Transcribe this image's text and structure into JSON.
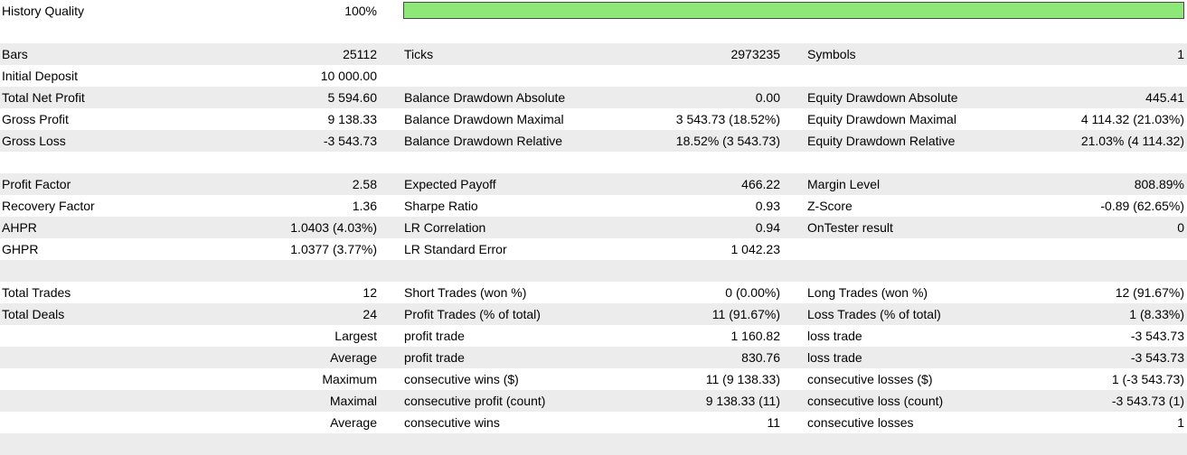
{
  "history_quality": {
    "label": "History Quality",
    "value_text": "100%",
    "fill_fraction": 1.0,
    "fill_color": "#8ee878"
  },
  "rows": [
    {
      "shade": false,
      "c1": "",
      "c2": "",
      "c3": "",
      "c4": "",
      "c5": "",
      "c6": ""
    },
    {
      "shade": true,
      "c1": "Bars",
      "c2": "25112",
      "c3": "Ticks",
      "c4": "2973235",
      "c5": "Symbols",
      "c6": "1"
    },
    {
      "shade": false,
      "c1": "Initial Deposit",
      "c2": "10 000.00",
      "c3": "",
      "c4": "",
      "c5": "",
      "c6": ""
    },
    {
      "shade": true,
      "c1": "Total Net Profit",
      "c2": "5 594.60",
      "c3": "Balance Drawdown Absolute",
      "c4": "0.00",
      "c5": "Equity Drawdown Absolute",
      "c6": "445.41"
    },
    {
      "shade": false,
      "c1": "Gross Profit",
      "c2": "9 138.33",
      "c3": "Balance Drawdown Maximal",
      "c4": "3 543.73 (18.52%)",
      "c5": "Equity Drawdown Maximal",
      "c6": "4 114.32 (21.03%)"
    },
    {
      "shade": true,
      "c1": "Gross Loss",
      "c2": "-3 543.73",
      "c3": "Balance Drawdown Relative",
      "c4": "18.52% (3 543.73)",
      "c5": "Equity Drawdown Relative",
      "c6": "21.03% (4 114.32)"
    },
    {
      "shade": false,
      "c1": "",
      "c2": "",
      "c3": "",
      "c4": "",
      "c5": "",
      "c6": ""
    },
    {
      "shade": true,
      "c1": "Profit Factor",
      "c2": "2.58",
      "c3": "Expected Payoff",
      "c4": "466.22",
      "c5": "Margin Level",
      "c6": "808.89%"
    },
    {
      "shade": false,
      "c1": "Recovery Factor",
      "c2": "1.36",
      "c3": "Sharpe Ratio",
      "c4": "0.93",
      "c5": "Z-Score",
      "c6": "-0.89 (62.65%)"
    },
    {
      "shade": true,
      "c1": "AHPR",
      "c2": "1.0403 (4.03%)",
      "c3": "LR Correlation",
      "c4": "0.94",
      "c5": "OnTester result",
      "c6": "0"
    },
    {
      "shade": false,
      "c1": "GHPR",
      "c2": "1.0377 (3.77%)",
      "c3": "LR Standard Error",
      "c4": "1 042.23",
      "c5": "",
      "c6": ""
    },
    {
      "shade": true,
      "c1": "",
      "c2": "",
      "c3": "",
      "c4": "",
      "c5": "",
      "c6": ""
    },
    {
      "shade": false,
      "c1": "Total Trades",
      "c2": "12",
      "c3": "Short Trades (won %)",
      "c4": "0 (0.00%)",
      "c5": "Long Trades (won %)",
      "c6": "12 (91.67%)"
    },
    {
      "shade": true,
      "c1": "Total Deals",
      "c2": "24",
      "c3": "Profit Trades (% of total)",
      "c4": "11 (91.67%)",
      "c5": "Loss Trades (% of total)",
      "c6": "1 (8.33%)"
    },
    {
      "shade": false,
      "c1": "",
      "c2": "Largest",
      "c3": "profit trade",
      "c4": "1 160.82",
      "c5": "loss trade",
      "c6": "-3 543.73"
    },
    {
      "shade": true,
      "c1": "",
      "c2": "Average",
      "c3": "profit trade",
      "c4": "830.76",
      "c5": "loss trade",
      "c6": "-3 543.73"
    },
    {
      "shade": false,
      "c1": "",
      "c2": "Maximum",
      "c3": "consecutive wins ($)",
      "c4": "11 (9 138.33)",
      "c5": "consecutive losses ($)",
      "c6": "1 (-3 543.73)"
    },
    {
      "shade": true,
      "c1": "",
      "c2": "Maximal",
      "c3": "consecutive profit (count)",
      "c4": "9 138.33 (11)",
      "c5": "consecutive loss (count)",
      "c6": "-3 543.73 (1)"
    },
    {
      "shade": false,
      "c1": "",
      "c2": "Average",
      "c3": "consecutive wins",
      "c4": "11",
      "c5": "consecutive losses",
      "c6": "1"
    },
    {
      "shade": true,
      "c1": "",
      "c2": "",
      "c3": "",
      "c4": "",
      "c5": "",
      "c6": ""
    }
  ]
}
